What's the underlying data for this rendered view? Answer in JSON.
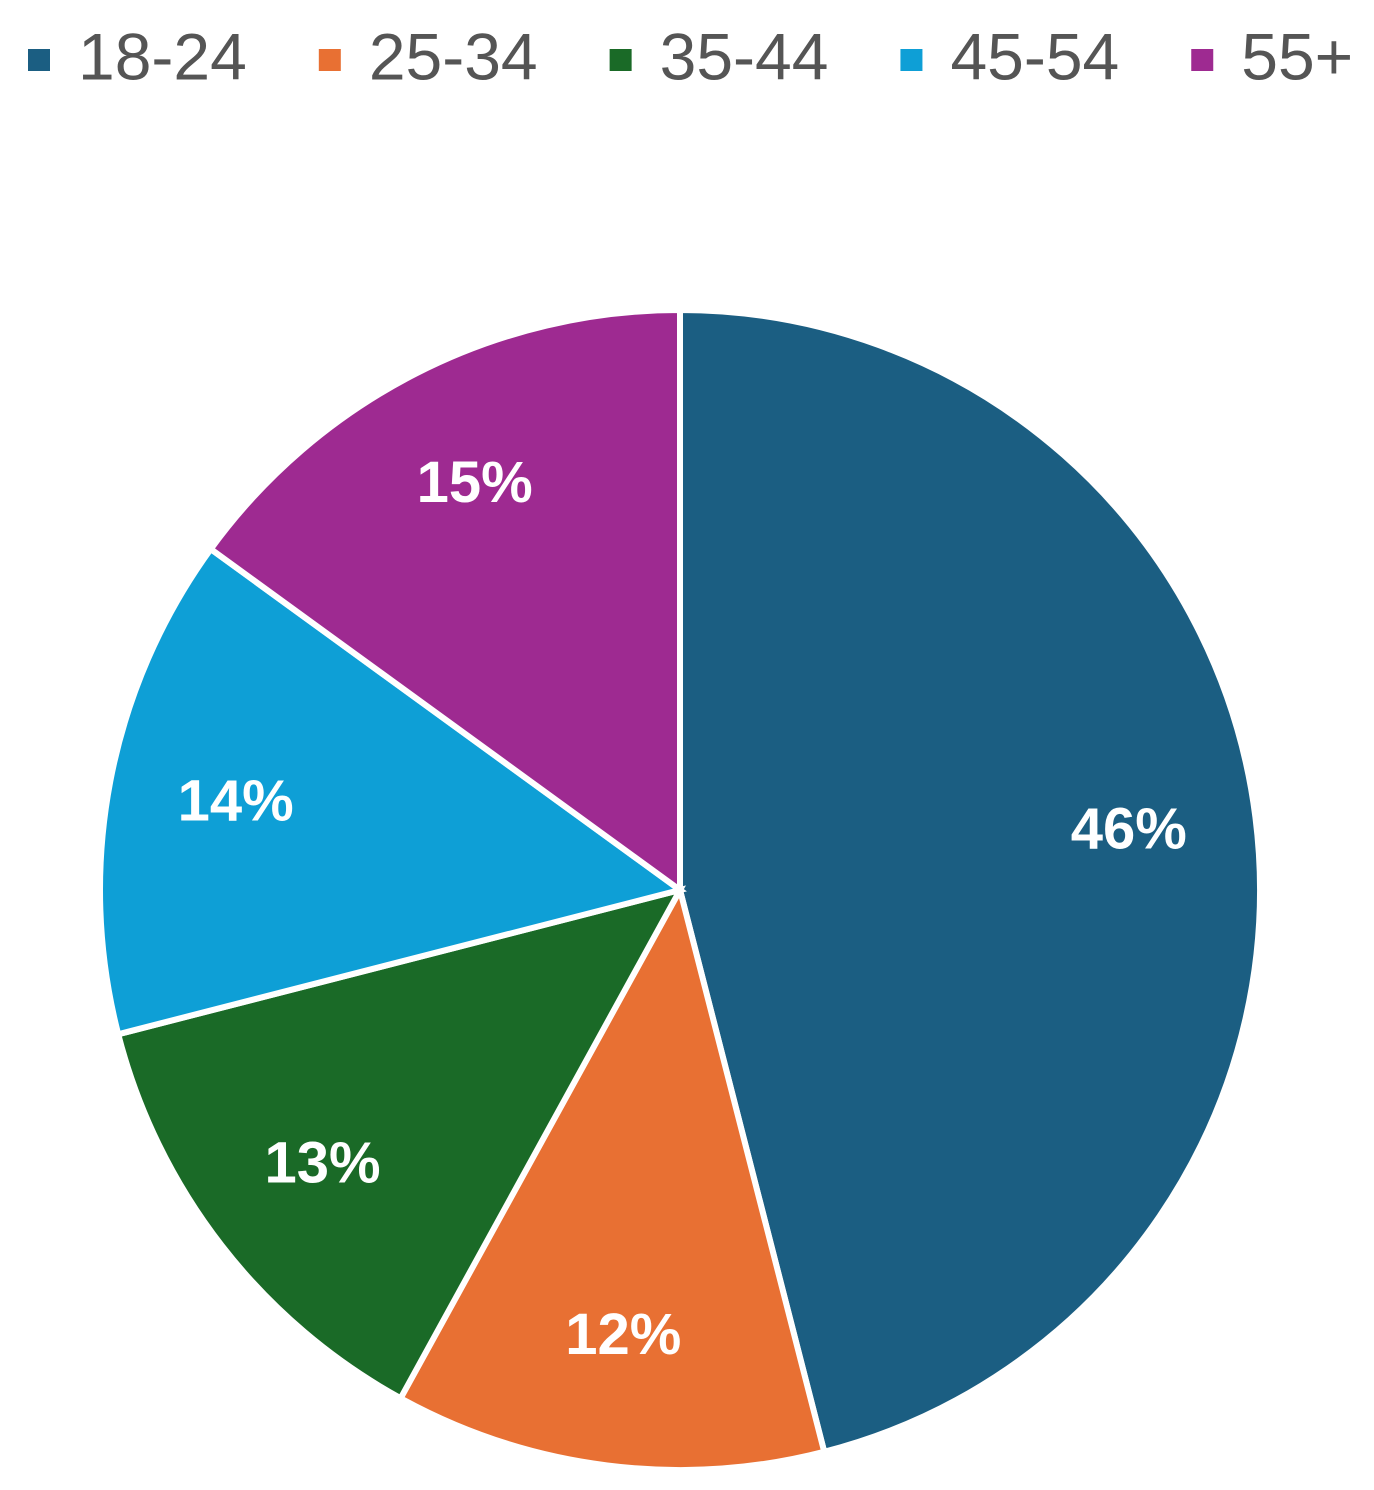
{
  "chart_data": {
    "type": "pie",
    "categories": [
      "18-24",
      "25-34",
      "35-44",
      "45-54",
      "55+"
    ],
    "values": [
      46,
      12,
      13,
      14,
      15
    ],
    "value_labels": [
      "46%",
      "12%",
      "13%",
      "14%",
      "15%"
    ],
    "colors": [
      "#1b5e82",
      "#e87033",
      "#1a6a27",
      "#0e9fd6",
      "#9e2a91"
    ],
    "legend": "top"
  }
}
